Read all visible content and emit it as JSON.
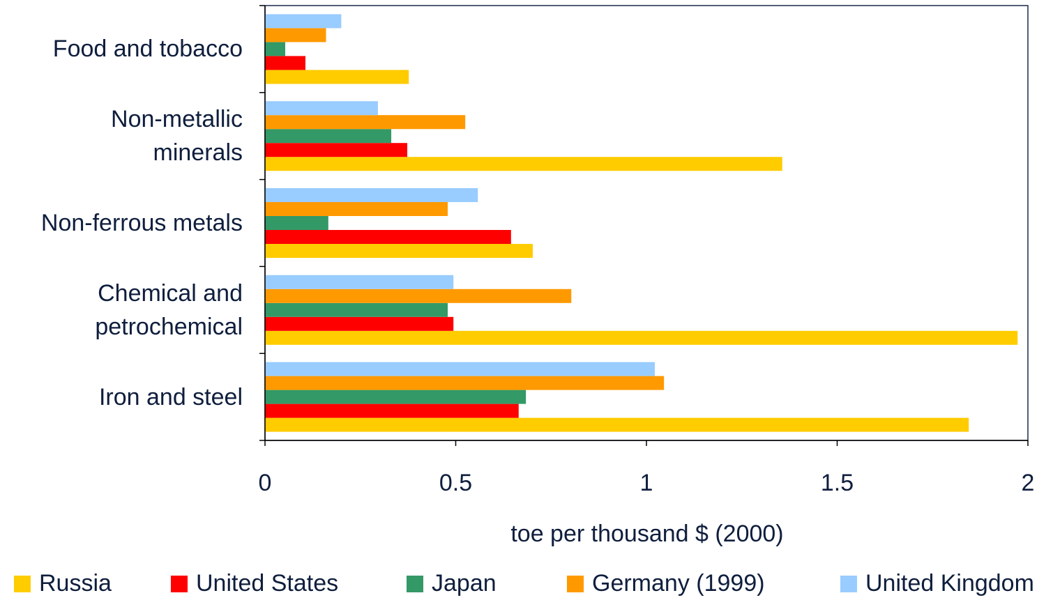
{
  "chart_data": {
    "type": "hbar",
    "categories": [
      "Food and tobacco",
      "Non-metallic\nminerals",
      "Non-ferrous metals",
      "Chemical and\npetrochemical",
      "Iron and steel"
    ],
    "series": [
      {
        "name": "Russia",
        "color": "#FFCC00",
        "values": [
          0.377,
          1.356,
          0.702,
          1.973,
          1.845
        ]
      },
      {
        "name": "United States",
        "color": "#FF0000",
        "values": [
          0.106,
          0.373,
          0.645,
          0.494,
          0.665
        ]
      },
      {
        "name": "Japan",
        "color": "#339966",
        "values": [
          0.053,
          0.331,
          0.166,
          0.479,
          0.684
        ]
      },
      {
        "name": "Germany (1999)",
        "color": "#FF9900",
        "values": [
          0.16,
          0.525,
          0.479,
          0.803,
          1.046
        ]
      },
      {
        "name": "United Kingdom",
        "color": "#99CCFF",
        "values": [
          0.2,
          0.296,
          0.558,
          0.494,
          1.022
        ]
      }
    ],
    "xlabel": "toe per thousand $ (2000)",
    "xlim": [
      0,
      2
    ],
    "xticks": [
      0,
      0.5,
      1,
      1.5,
      2
    ],
    "legend": "bottom"
  }
}
